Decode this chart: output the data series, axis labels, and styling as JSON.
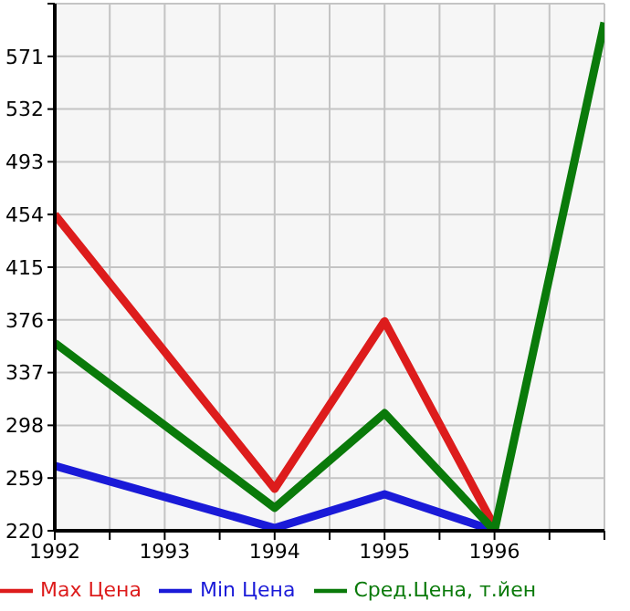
{
  "chart_data": {
    "type": "line",
    "x": [
      1992,
      1994,
      1995,
      1996,
      1997
    ],
    "series": [
      {
        "name": "Max Цена",
        "color": "#dd1c1c",
        "values": [
          454,
          251,
          375,
          223,
          null
        ]
      },
      {
        "name": "Min Цена",
        "color": "#1a1ad8",
        "values": [
          268,
          222,
          247,
          220,
          null
        ]
      },
      {
        "name": "Сред.Цена, т.йен",
        "color": "#0a7a0a",
        "values": [
          359,
          237,
          307,
          220,
          596
        ]
      }
    ],
    "xlim": [
      1992,
      1997
    ],
    "xticks": [
      1992,
      {
        "value": 1992.5,
        "label": null
      },
      1993,
      {
        "value": 1993.5,
        "label": null
      },
      1994,
      {
        "value": 1994.5,
        "label": null
      },
      1995,
      {
        "value": 1995.5,
        "label": null
      },
      1996,
      {
        "value": 1996.5,
        "label": null
      },
      {
        "value": 1997,
        "label": null
      }
    ],
    "ylim": [
      220,
      610
    ],
    "yticks": [
      220,
      259,
      298,
      337,
      376,
      415,
      454,
      493,
      532,
      571,
      {
        "value": 610,
        "label": null
      }
    ],
    "grid": true,
    "legend": "bottom",
    "marker": "none",
    "line_style": "solid"
  }
}
